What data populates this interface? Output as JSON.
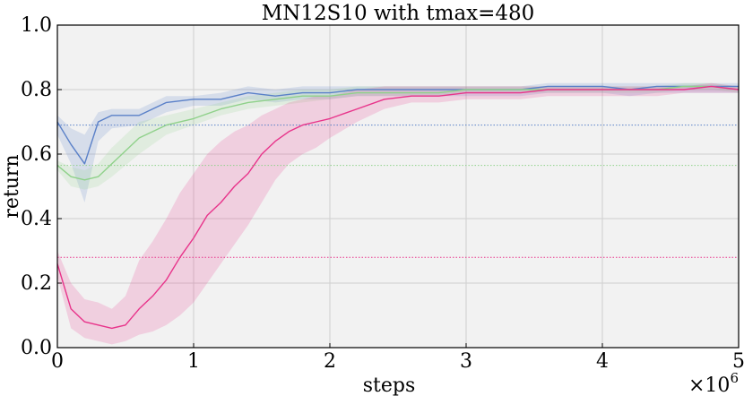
{
  "chart_data": {
    "type": "line",
    "title": "MN12S10 with tmax=480",
    "xlabel": "steps",
    "ylabel": "return",
    "x_multiplier_label": "×10",
    "x_multiplier_exponent": "6",
    "xlim": [
      0,
      5
    ],
    "ylim": [
      0.0,
      1.0
    ],
    "xticks": [
      "0",
      "1",
      "2",
      "3",
      "4",
      "5"
    ],
    "yticks": [
      "0.0",
      "0.2",
      "0.4",
      "0.6",
      "0.8",
      "1.0"
    ],
    "grid": true,
    "background": "#f2f2f2",
    "series": [
      {
        "color": "#5a80c8",
        "baseline": 0.69,
        "x": [
          0.0,
          0.1,
          0.2,
          0.3,
          0.4,
          0.6,
          0.8,
          1.0,
          1.2,
          1.4,
          1.6,
          1.8,
          2.0,
          2.2,
          2.4,
          2.6,
          2.8,
          3.0,
          3.2,
          3.4,
          3.6,
          3.8,
          4.0,
          4.2,
          4.4,
          4.6,
          4.8,
          5.0
        ],
        "y": [
          0.7,
          0.63,
          0.57,
          0.7,
          0.72,
          0.72,
          0.76,
          0.77,
          0.77,
          0.79,
          0.78,
          0.79,
          0.79,
          0.8,
          0.8,
          0.8,
          0.8,
          0.8,
          0.8,
          0.8,
          0.81,
          0.81,
          0.81,
          0.8,
          0.81,
          0.81,
          0.81,
          0.81
        ],
        "lower": [
          0.66,
          0.57,
          0.45,
          0.64,
          0.68,
          0.69,
          0.73,
          0.75,
          0.75,
          0.77,
          0.76,
          0.77,
          0.77,
          0.78,
          0.78,
          0.78,
          0.78,
          0.78,
          0.78,
          0.78,
          0.79,
          0.79,
          0.79,
          0.78,
          0.79,
          0.79,
          0.79,
          0.79
        ],
        "upper": [
          0.72,
          0.68,
          0.66,
          0.73,
          0.74,
          0.74,
          0.78,
          0.78,
          0.79,
          0.81,
          0.8,
          0.81,
          0.81,
          0.81,
          0.81,
          0.81,
          0.81,
          0.81,
          0.81,
          0.81,
          0.82,
          0.82,
          0.82,
          0.82,
          0.82,
          0.82,
          0.82,
          0.82
        ]
      },
      {
        "color": "#8fd18a",
        "baseline": 0.565,
        "x": [
          0.0,
          0.1,
          0.2,
          0.3,
          0.4,
          0.6,
          0.8,
          1.0,
          1.2,
          1.4,
          1.6,
          1.8,
          2.0,
          2.2,
          2.4,
          2.6,
          2.8,
          3.0,
          3.2,
          3.4,
          3.6,
          3.8,
          4.0,
          4.2,
          4.4,
          4.6,
          4.8,
          5.0
        ],
        "y": [
          0.565,
          0.53,
          0.52,
          0.53,
          0.57,
          0.65,
          0.69,
          0.71,
          0.74,
          0.76,
          0.77,
          0.78,
          0.78,
          0.79,
          0.79,
          0.79,
          0.79,
          0.8,
          0.8,
          0.8,
          0.8,
          0.8,
          0.8,
          0.8,
          0.8,
          0.81,
          0.81,
          0.8
        ],
        "lower": [
          0.55,
          0.5,
          0.49,
          0.5,
          0.53,
          0.6,
          0.66,
          0.69,
          0.72,
          0.74,
          0.75,
          0.76,
          0.77,
          0.78,
          0.78,
          0.78,
          0.78,
          0.79,
          0.79,
          0.79,
          0.79,
          0.79,
          0.79,
          0.79,
          0.79,
          0.8,
          0.8,
          0.79
        ],
        "upper": [
          0.58,
          0.56,
          0.55,
          0.57,
          0.62,
          0.7,
          0.72,
          0.74,
          0.76,
          0.78,
          0.79,
          0.8,
          0.8,
          0.81,
          0.81,
          0.81,
          0.81,
          0.81,
          0.81,
          0.81,
          0.81,
          0.81,
          0.81,
          0.81,
          0.81,
          0.82,
          0.82,
          0.81
        ]
      },
      {
        "color": "#e8338a",
        "baseline": 0.28,
        "x": [
          0.0,
          0.1,
          0.2,
          0.3,
          0.4,
          0.5,
          0.6,
          0.7,
          0.8,
          0.9,
          1.0,
          1.1,
          1.2,
          1.3,
          1.4,
          1.5,
          1.6,
          1.7,
          1.8,
          1.9,
          2.0,
          2.2,
          2.4,
          2.6,
          2.8,
          3.0,
          3.2,
          3.4,
          3.6,
          3.8,
          4.0,
          4.2,
          4.4,
          4.6,
          4.8,
          5.0
        ],
        "y": [
          0.26,
          0.12,
          0.08,
          0.07,
          0.06,
          0.07,
          0.12,
          0.16,
          0.21,
          0.28,
          0.34,
          0.41,
          0.45,
          0.5,
          0.54,
          0.6,
          0.64,
          0.67,
          0.69,
          0.7,
          0.71,
          0.74,
          0.77,
          0.78,
          0.78,
          0.79,
          0.79,
          0.79,
          0.8,
          0.8,
          0.8,
          0.8,
          0.8,
          0.8,
          0.81,
          0.8
        ],
        "lower": [
          0.22,
          0.06,
          0.03,
          0.02,
          0.01,
          0.02,
          0.04,
          0.05,
          0.07,
          0.1,
          0.14,
          0.2,
          0.26,
          0.32,
          0.38,
          0.45,
          0.52,
          0.57,
          0.6,
          0.62,
          0.65,
          0.7,
          0.74,
          0.76,
          0.76,
          0.77,
          0.77,
          0.77,
          0.78,
          0.78,
          0.78,
          0.78,
          0.78,
          0.79,
          0.79,
          0.79
        ],
        "upper": [
          0.3,
          0.2,
          0.15,
          0.14,
          0.12,
          0.16,
          0.27,
          0.33,
          0.4,
          0.48,
          0.54,
          0.6,
          0.64,
          0.67,
          0.69,
          0.72,
          0.74,
          0.76,
          0.77,
          0.78,
          0.78,
          0.8,
          0.81,
          0.81,
          0.81,
          0.81,
          0.81,
          0.81,
          0.81,
          0.81,
          0.81,
          0.81,
          0.81,
          0.81,
          0.82,
          0.81
        ]
      }
    ]
  }
}
